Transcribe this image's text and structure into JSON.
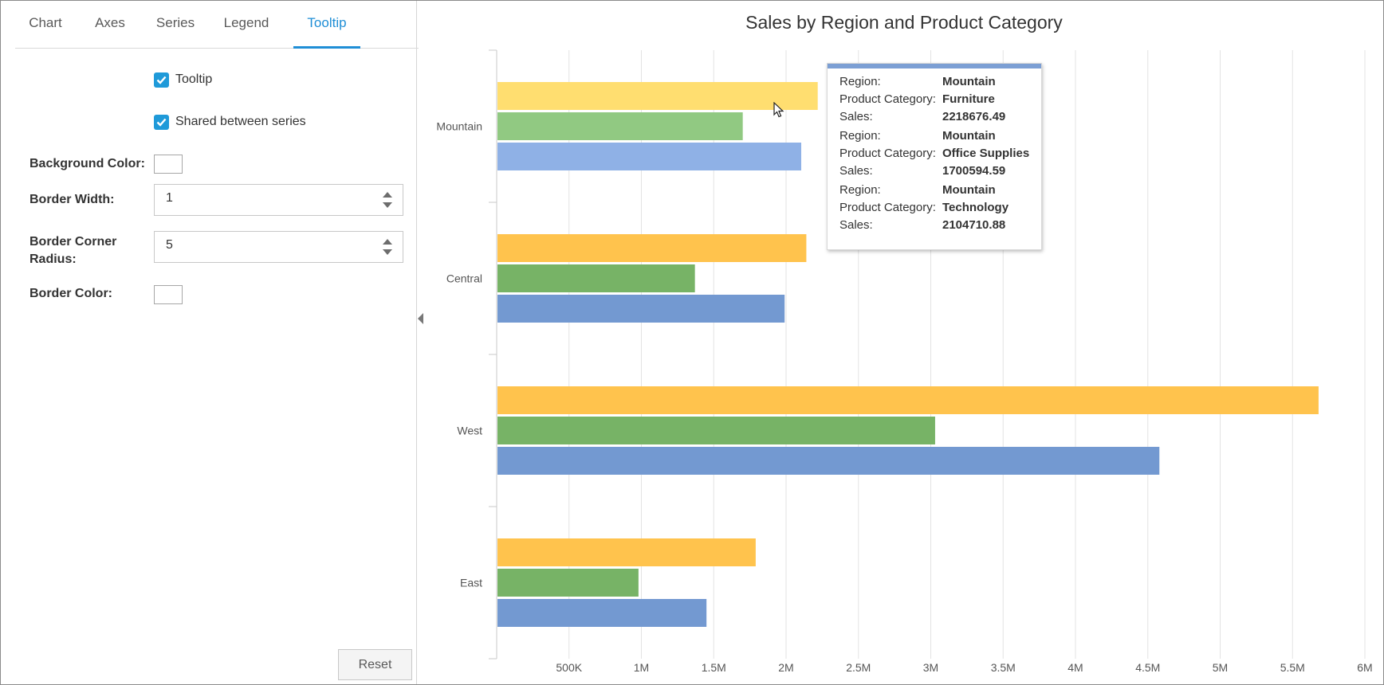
{
  "tabs": [
    "Chart",
    "Axes",
    "Series",
    "Legend",
    "Tooltip"
  ],
  "active_tab": "Tooltip",
  "settings": {
    "tooltip_label": "Tooltip",
    "tooltip_checked": true,
    "shared_label": "Shared between series",
    "shared_checked": true,
    "background_color_label": "Background Color:",
    "border_width_label": "Border Width:",
    "border_width_value": "1",
    "border_radius_label_1": "Border Corner",
    "border_radius_label_2": "Radius:",
    "border_radius_value": "5",
    "border_color_label": "Border Color:",
    "background_color_value": "#ffffff",
    "border_color_value": "#ffffff"
  },
  "reset_label": "Reset",
  "icons": {
    "check": "check-icon",
    "collapse": "caret-left-icon",
    "spinner_up": "caret-up-icon",
    "spinner_down": "caret-down-icon",
    "cursor": "mouse-pointer-icon"
  },
  "chart_data": {
    "type": "bar",
    "orientation": "horizontal",
    "title": "Sales by Region and Product Category",
    "categories": [
      "Mountain",
      "Central",
      "West",
      "East"
    ],
    "series": [
      {
        "color": "#ffc34d",
        "values": [
          2218676.49,
          2140000,
          5680000,
          1790000
        ]
      },
      {
        "color": "#77b366",
        "values": [
          1700594.59,
          1370000,
          3030000,
          980000
        ]
      },
      {
        "color": "#7399d1",
        "values": [
          2104710.88,
          1990000,
          4580000,
          1450000
        ]
      }
    ],
    "xlim": [
      0,
      6000000
    ],
    "xticks": [
      500000,
      1000000,
      1500000,
      2000000,
      2500000,
      3000000,
      3500000,
      4000000,
      4500000,
      5000000,
      5500000,
      6000000
    ],
    "xtick_labels": [
      "500K",
      "1M",
      "1.5M",
      "2M",
      "2.5M",
      "3M",
      "3.5M",
      "4M",
      "4.5M",
      "5M",
      "5.5M",
      "6M"
    ],
    "hover_category": "Mountain",
    "hover_colors": [
      "#ffde70",
      "#91c982",
      "#8fb1e6"
    ],
    "grid": true,
    "legend": "none"
  },
  "tooltip": {
    "rows": [
      {
        "key": "Region:",
        "value": "Mountain"
      },
      {
        "key": "Product Category:",
        "value": "Furniture"
      },
      {
        "key": "Sales:",
        "value": "2218676.49"
      },
      {
        "key": "Region:",
        "value": "Mountain"
      },
      {
        "key": "Product Category:",
        "value": "Office Supplies"
      },
      {
        "key": "Sales:",
        "value": "1700594.59"
      },
      {
        "key": "Region:",
        "value": "Mountain"
      },
      {
        "key": "Product Category:",
        "value": "Technology"
      },
      {
        "key": "Sales:",
        "value": "2104710.88"
      }
    ],
    "accent_color": "#7c9fd4"
  }
}
